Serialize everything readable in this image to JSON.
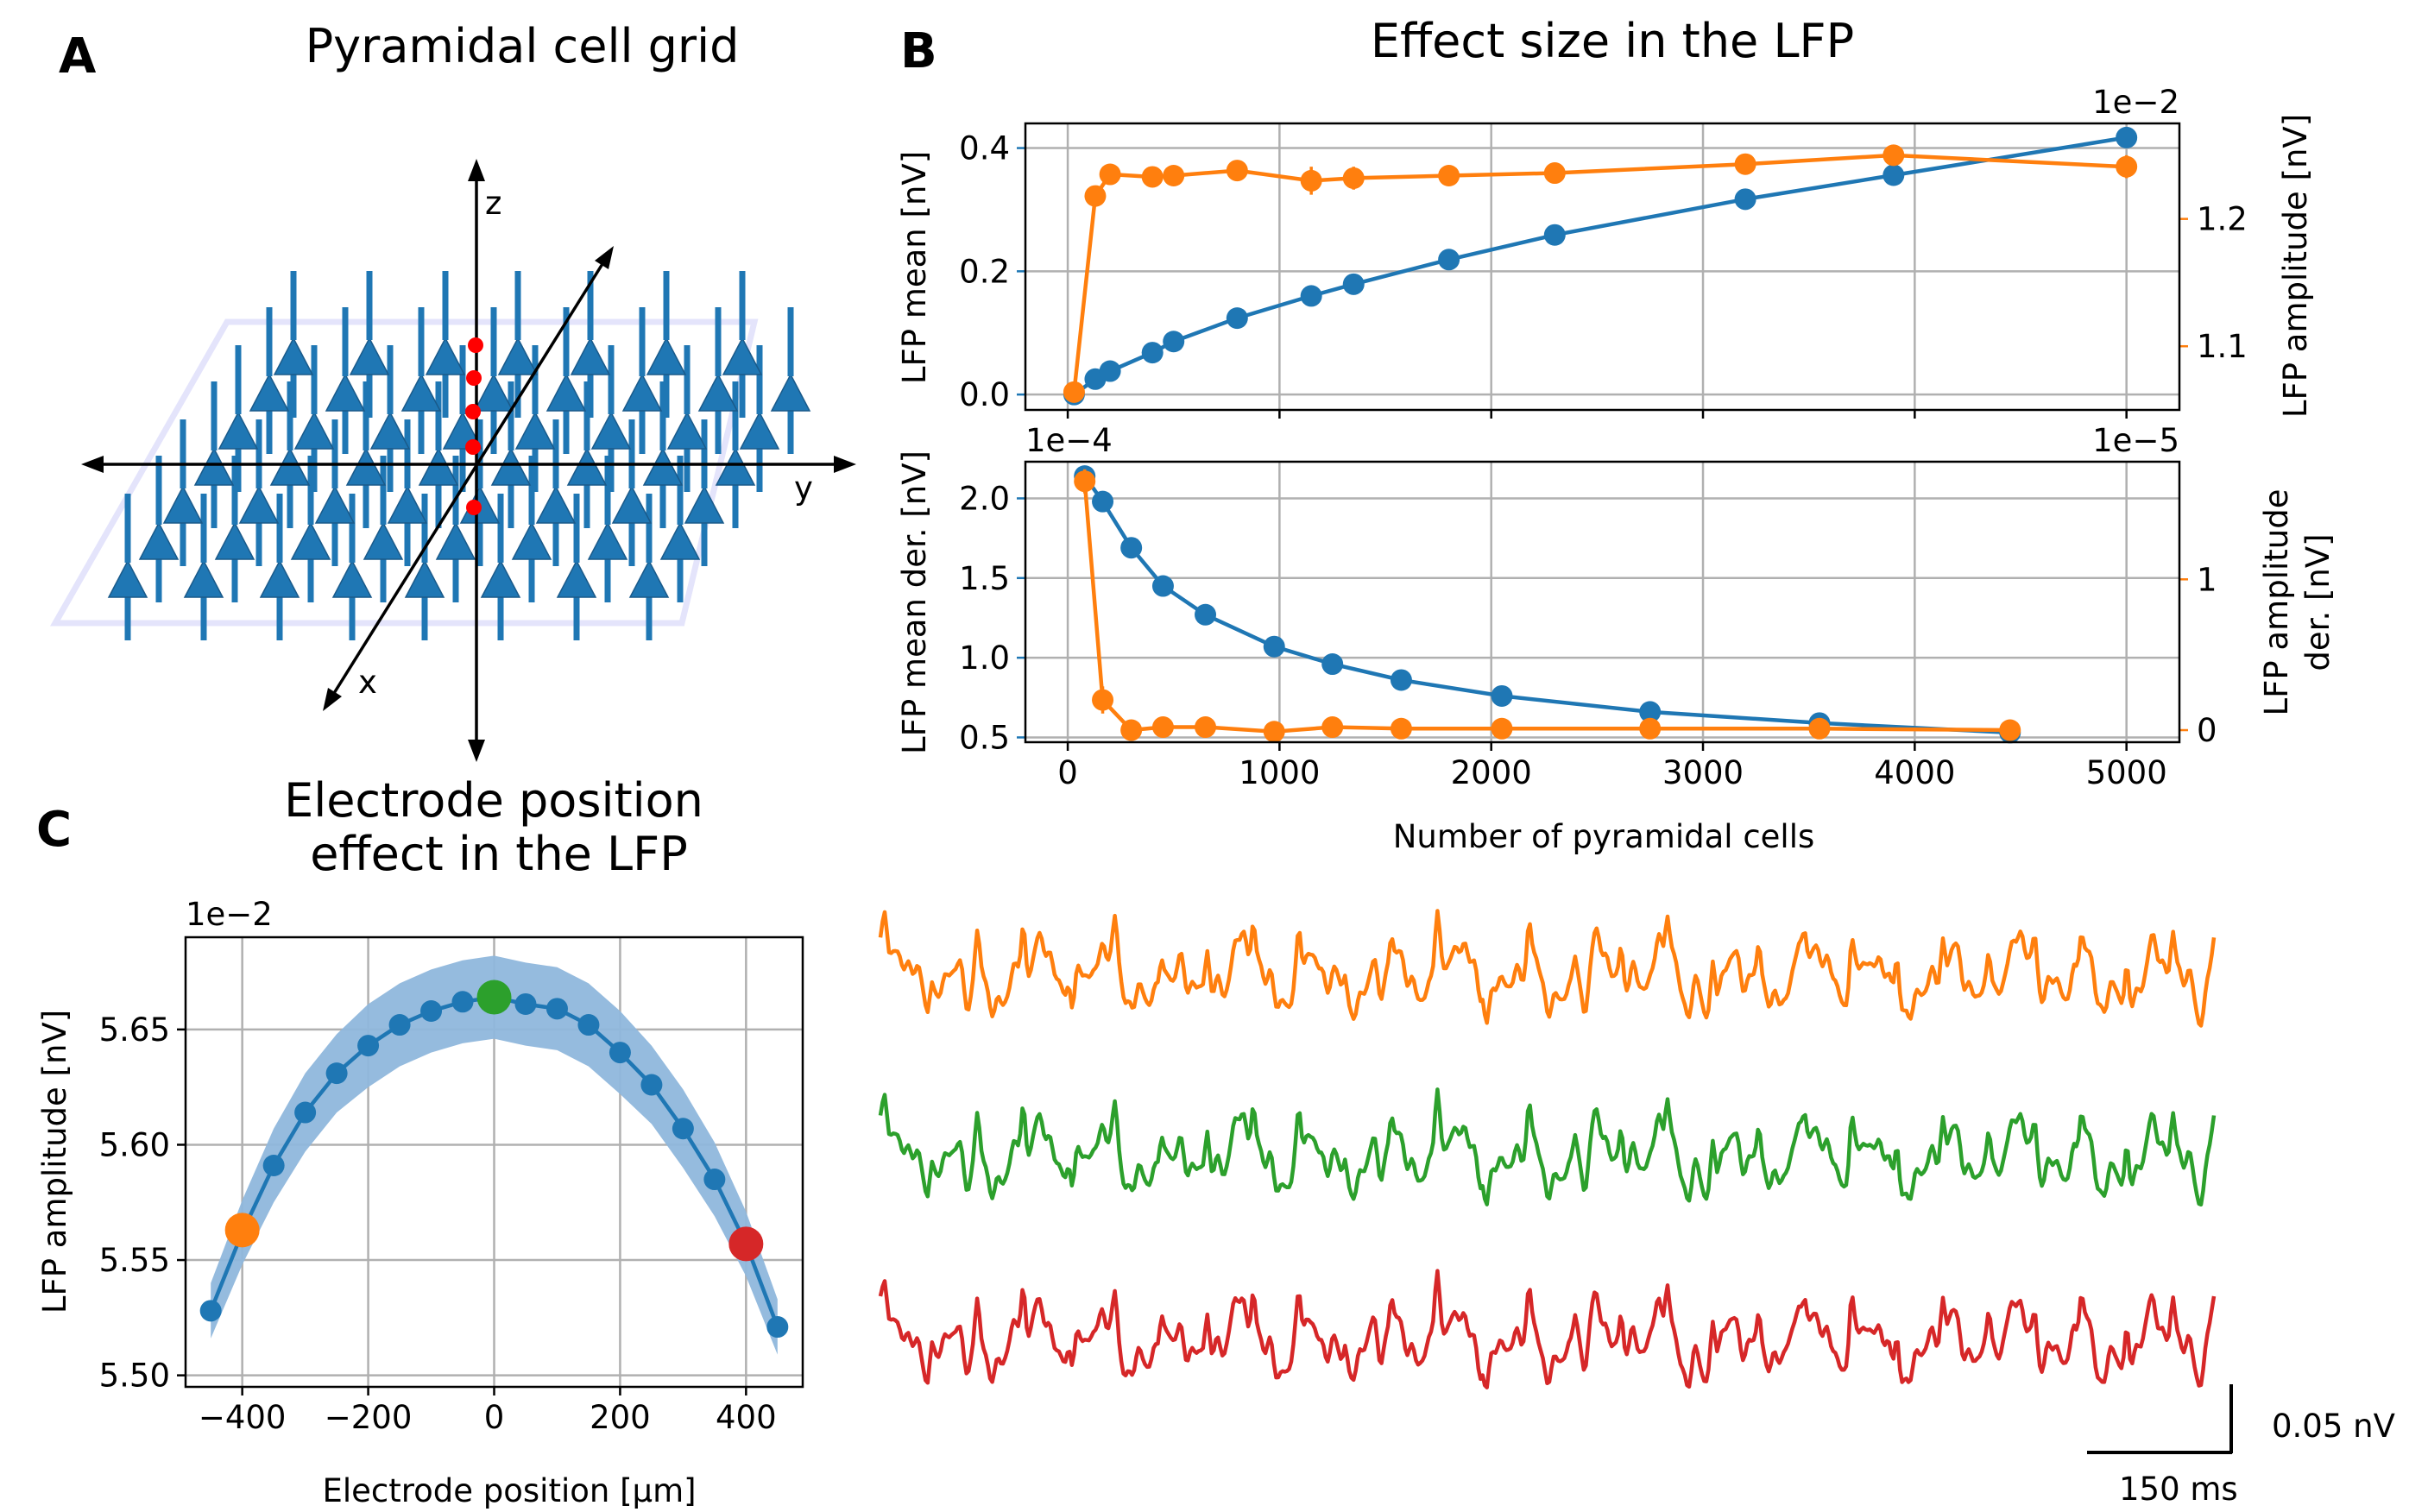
{
  "panels": {
    "A": {
      "letter": "A",
      "title": "Pyramidal cell grid",
      "axes": {
        "x": "x",
        "y": "y",
        "z": "z"
      }
    },
    "B": {
      "letter": "B",
      "title": "Effect size in the LFP"
    },
    "C": {
      "letter": "C",
      "title_line1": "Electrode position",
      "title_line2": "effect in the LFP"
    }
  },
  "colors": {
    "blue": "#1f77b4",
    "orange": "#ff7f0e",
    "green": "#2ca02c",
    "red": "#d62728",
    "band": "#8fb7dc",
    "grid": "#b0b0b0",
    "plane": "#e4e4fb"
  },
  "scale_bar": {
    "voltage": "0.05 nV",
    "time": "150 ms"
  },
  "chart_data": [
    {
      "id": "B-top",
      "type": "line",
      "xlabel": "",
      "xlim": [
        -200,
        5250
      ],
      "xticks": [
        0,
        1000,
        2000,
        3000,
        4000,
        5000
      ],
      "left_axis": {
        "label": "LFP mean [nV]",
        "offset_text": "",
        "ylim": [
          -0.025,
          0.44
        ],
        "ticks": [
          0.0,
          0.2,
          0.4
        ],
        "tick_labels": [
          "0.0",
          "0.2",
          "0.4"
        ]
      },
      "right_axis": {
        "label": "LFP amplitude [nV]",
        "offset_text": "1e−2",
        "ylim": [
          1.05,
          1.275
        ],
        "ticks": [
          1.1,
          1.2
        ],
        "tick_labels": [
          "1.1",
          "1.2"
        ]
      },
      "series": [
        {
          "axis": "left",
          "color": "blue",
          "x": [
            30,
            130,
            200,
            400,
            500,
            800,
            1150,
            1350,
            1800,
            2300,
            3200,
            3900,
            5000
          ],
          "y": [
            0.0,
            0.025,
            0.038,
            0.068,
            0.086,
            0.124,
            0.16,
            0.179,
            0.219,
            0.259,
            0.317,
            0.356,
            0.417
          ]
        },
        {
          "axis": "right",
          "color": "orange",
          "x": [
            30,
            130,
            200,
            400,
            500,
            800,
            1150,
            1350,
            1800,
            2300,
            3200,
            3900,
            5000
          ],
          "y": [
            1.064,
            1.218,
            1.235,
            1.233,
            1.234,
            1.238,
            1.23,
            1.232,
            1.234,
            1.236,
            1.243,
            1.25,
            1.241
          ],
          "err": [
            0,
            0.008,
            0.007,
            0.004,
            0.004,
            0.004,
            0.011,
            0.009,
            0.005,
            0.004,
            0.005,
            0.004,
            0.009
          ]
        }
      ]
    },
    {
      "id": "B-bottom",
      "type": "line",
      "xlabel": "Number of pyramidal cells",
      "xlim": [
        -200,
        5250
      ],
      "xticks": [
        0,
        1000,
        2000,
        3000,
        4000,
        5000
      ],
      "left_axis": {
        "label_line1": "LFP mean der. [nV]",
        "offset_text": "1e−4",
        "ylim": [
          0.47,
          2.23
        ],
        "ticks": [
          0.5,
          1.0,
          1.5,
          2.0
        ],
        "tick_labels": [
          "0.5",
          "1.0",
          "1.5",
          "2.0"
        ]
      },
      "right_axis": {
        "label_line1": "LFP amplitude",
        "label_line2": "der. [nV]",
        "offset_text": "1e−5",
        "ylim": [
          -0.08,
          1.78
        ],
        "ticks": [
          0,
          1
        ],
        "tick_labels": [
          "0",
          "1"
        ]
      },
      "series": [
        {
          "axis": "left",
          "color": "blue",
          "x": [
            80,
            165,
            300,
            450,
            650,
            975,
            1250,
            1575,
            2050,
            2750,
            3550,
            4450
          ],
          "y": [
            2.14,
            1.98,
            1.69,
            1.45,
            1.27,
            1.07,
            0.96,
            0.86,
            0.76,
            0.66,
            0.59,
            0.53
          ]
        },
        {
          "axis": "right",
          "color": "orange",
          "x": [
            80,
            165,
            300,
            450,
            650,
            975,
            1250,
            1575,
            2050,
            2750,
            3550,
            4450
          ],
          "y": [
            1.65,
            0.2,
            0.0,
            0.02,
            0.02,
            -0.01,
            0.02,
            0.01,
            0.01,
            0.01,
            0.01,
            0.0
          ],
          "err": [
            0.08,
            0.09,
            0.03,
            0.04,
            0.03,
            0.03,
            0.03,
            0.02,
            0.02,
            0.02,
            0.02,
            0.02
          ]
        }
      ]
    },
    {
      "id": "C",
      "type": "line",
      "xlabel": "Electrode position [$\\mu$m]",
      "ylabel": "LFP amplitude [nV]",
      "offset_text": "1e−2",
      "xlim": [
        -490,
        490
      ],
      "ylim": [
        5.495,
        5.69
      ],
      "xticks": [
        -400,
        -200,
        0,
        200,
        400
      ],
      "xtick_labels": [
        "−400",
        "−200",
        "0",
        "200",
        "400"
      ],
      "yticks": [
        5.5,
        5.55,
        5.6,
        5.65
      ],
      "ytick_labels": [
        "5.50",
        "5.55",
        "5.60",
        "5.65"
      ],
      "x": [
        -450,
        -400,
        -350,
        -300,
        -250,
        -200,
        -150,
        -100,
        -50,
        0,
        50,
        100,
        150,
        200,
        250,
        300,
        350,
        400,
        450
      ],
      "y": [
        5.528,
        5.562,
        5.591,
        5.614,
        5.631,
        5.643,
        5.652,
        5.658,
        5.662,
        5.664,
        5.661,
        5.659,
        5.652,
        5.64,
        5.626,
        5.607,
        5.585,
        5.557,
        5.521
      ],
      "band_halfwidth": [
        0.012,
        0.014,
        0.016,
        0.017,
        0.017,
        0.018,
        0.018,
        0.018,
        0.018,
        0.018,
        0.018,
        0.018,
        0.018,
        0.018,
        0.017,
        0.017,
        0.016,
        0.014,
        0.012
      ],
      "highlights": [
        {
          "x": -400,
          "y": 5.563,
          "color": "orange"
        },
        {
          "x": 0,
          "y": 5.664,
          "color": "green"
        },
        {
          "x": 400,
          "y": 5.557,
          "color": "red"
        }
      ]
    }
  ]
}
